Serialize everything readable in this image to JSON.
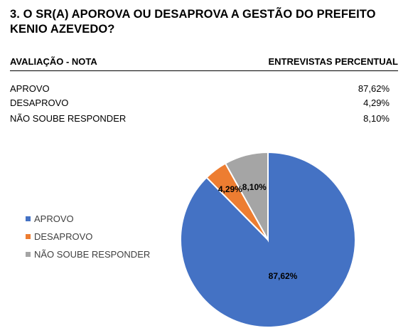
{
  "question": {
    "title": "3. O SR(A) APOROVA OU DESAPROVA A GESTÃO DO PREFEITO KENIO AZEVEDO?"
  },
  "table": {
    "header_left": "AVALIAÇÃO - NOTA",
    "header_right": "ENTREVISTAS PERCENTUAL",
    "rows": [
      {
        "label": "APROVO",
        "value": "87,62%"
      },
      {
        "label": "DESAPROVO",
        "value": "4,29%"
      },
      {
        "label": "NÃO SOUBE RESPONDER",
        "value": "8,10%"
      }
    ]
  },
  "chart_data": {
    "type": "pie",
    "legend_position": "left",
    "categories": [
      "APROVO",
      "DESAPROVO",
      "NÃO SOUBE RESPONDER"
    ],
    "values": [
      87.62,
      4.29,
      8.1
    ],
    "data_labels": [
      "87,62%",
      "4,29%",
      "8,10%"
    ],
    "colors": [
      "#4472C4",
      "#ED7D31",
      "#A5A5A5"
    ]
  }
}
